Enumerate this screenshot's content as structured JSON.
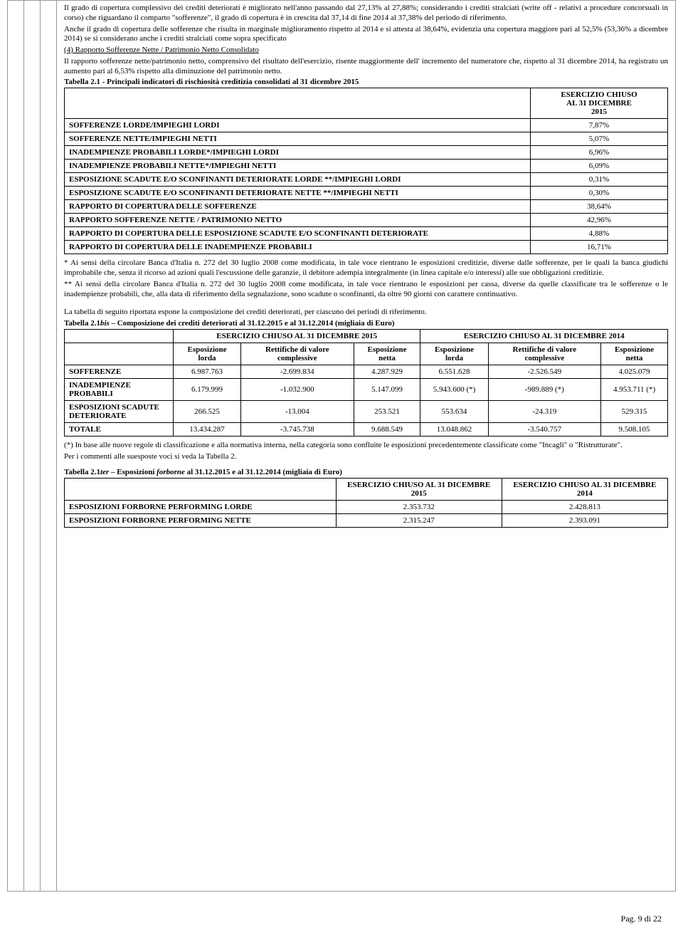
{
  "para1": "Il grado di copertura complessivo dei crediti deteriorati è migliorato nell'anno passando dal 27,13% al 27,88%; considerando i crediti stralciati (write off - relativi a procedure concorsuali in corso) che riguardano il comparto \"sofferenze\", il grado di copertura è in crescita dal 37,14 di fine 2014 al 37,38% del periodo di riferimento.",
  "para2": "Anche il grado di copertura delle sofferenze che risulta in marginale miglioramento rispetto al 2014 e si attesta al 38,64%, evidenzia una copertura maggiore pari al 52,5% (53,36% a dicembre 2014) se si considerano anche i crediti stralciati come sopra specificato",
  "para3_label": "(4) Rapporto Sofferenze Nette / Patrimonio Netto Consolidato",
  "para4": "Il rapporto sofferenze nette/patrimonio netto, comprensivo del risultato dell'esercizio, risente maggiormente dell' incremento del numeratore che, rispetto al 31 dicembre 2014, ha registrato un aumento pari al 6,53% rispetto alla diminuzione del patrimonio netto.",
  "tab1_title": "Tabella 2.1 - Principali indicatori di rischiosità creditizia consolidati al 31 dicembre 2015",
  "tab1_header": "ESERCIZIO CHIUSO\nAL 31 DICEMBRE\n2015",
  "tab1_rows": [
    {
      "label": "SOFFERENZE LORDE/IMPIEGHI LORDI",
      "val": "7,87%"
    },
    {
      "label": "SOFFERENZE NETTE/IMPIEGHI NETTI",
      "val": "5,07%"
    },
    {
      "label": "INADEMPIENZE PROBABILI LORDE*/IMPIEGHI LORDI",
      "val": "6,96%"
    },
    {
      "label": "INADEMPIENZE PROBABILI NETTE*/IMPIEGHI NETTI",
      "val": "6,09%"
    },
    {
      "label": "ESPOSIZIONE SCADUTE E/O SCONFINANTI DETERIORATE LORDE **/IMPIEGHI LORDI",
      "val": "0,31%"
    },
    {
      "label": "ESPOSIZIONE SCADUTE E/O SCONFINANTI DETERIORATE NETTE **/IMPIEGHI NETTI",
      "val": "0,30%"
    },
    {
      "label": "RAPPORTO DI COPERTURA DELLE SOFFERENZE",
      "val": "38,64%"
    },
    {
      "label": "RAPPORTO SOFFERENZE NETTE / PATRIMONIO NETTO",
      "val": "42,96%"
    },
    {
      "label": "RAPPORTO DI COPERTURA DELLE ESPOSIZIONE SCADUTE E/O SCONFINANTI DETERIORATE",
      "val": "4,88%"
    },
    {
      "label": "RAPPORTO DI COPERTURA DELLE INADEMPIENZE PROBABILI",
      "val": "16,71%"
    }
  ],
  "note1": "* Ai sensi della circolare Banca d'Italia n. 272 del 30 luglio 2008 come modificata, in tale voce rientrano le esposizioni creditizie, diverse dalle sofferenze, per le quali la banca giudichi improbabile che, senza il ricorso ad azioni quali l'escussione delle garanzie, il debitore adempia integralmente (in linea capitale e/o interessi) alle sue obbligazioni creditizie.",
  "note2": "** Ai sensi della circolare Banca d'Italia n. 272 del 30 luglio 2008 come modificata, in tale voce rientrano le esposizioni per cassa, diverse da quelle classificate tra le sofferenze o le inadempienze probabili, che, alla data di riferimento della segnalazione, sono scadute o sconfinanti, da oltre 90 giorni con carattere continuativo.",
  "para5": "La tabella di seguito riportata espone la composizione dei crediti deteriorati, per ciascuno dei periodi di riferimento.",
  "tab2_title_prefix": "Tabella 2.1",
  "tab2_title_italic": "bis",
  "tab2_title_suffix": " – Composizione dei crediti deteriorati al 31.12.2015 e al 31.12.2014 (migliaia di Euro)",
  "tab2_h1a": "ESERCIZIO CHIUSO AL 31 DICEMBRE 2015",
  "tab2_h1b": "ESERCIZIO CHIUSO AL 31 DICEMBRE 2014",
  "tab2_h2": [
    "Esposizione lorda",
    "Rettifiche di valore complessive",
    "Esposizione netta",
    "Esposizione lorda",
    "Rettifiche di valore complessive",
    "Esposizione netta"
  ],
  "tab2_rows": [
    {
      "label": "SOFFERENZE",
      "v": [
        "6.987.763",
        "-2.699.834",
        "4.287.929",
        "6.551.628",
        "-2.526.549",
        "4.025.079"
      ]
    },
    {
      "label": "INADEMPIENZE PROBABILI",
      "v": [
        "6.179.999",
        "-1.032.900",
        "5.147.099",
        "5.943.600 (*)",
        "-989.889 (*)",
        "4.953.711 (*)"
      ]
    },
    {
      "label": "ESPOSIZIONI SCADUTE DETERIORATE",
      "v": [
        "266.525",
        "-13.004",
        "253.521",
        "553.634",
        "-24.319",
        "529.315"
      ]
    },
    {
      "label": "TOTALE",
      "v": [
        "13.434.287",
        "-3.745.738",
        "9.688.549",
        "13.048.862",
        "-3.540.757",
        "9.508.105"
      ]
    }
  ],
  "note3": "(*) In base alle nuove regole di classificazione e alla normativa interna, nella categoria sono confluite le esposizioni precedentemente classificate come \"Incagli\" o \"Ristrutturate\".",
  "note4": "Per i commenti alle suesposte voci si veda la Tabella 2.",
  "tab3_title_prefix": "Tabella 2.1",
  "tab3_title_italic1": "ter",
  "tab3_title_mid": " – Esposizioni ",
  "tab3_title_italic2": "forborne",
  "tab3_title_suffix": " al 31.12.2015 e al 31.12.2014 (migliaia di Euro)",
  "tab3_h": [
    "ESERCIZIO CHIUSO AL 31 DICEMBRE 2015",
    "ESERCIZIO CHIUSO AL 31 DICEMBRE 2014"
  ],
  "tab3_rows": [
    {
      "label": "ESPOSIZIONI FORBORNE PERFORMING LORDE",
      "v": [
        "2.353.732",
        "2.428.813"
      ]
    },
    {
      "label": "ESPOSIZIONI FORBORNE PERFORMING NETTE",
      "v": [
        "2.315.247",
        "2.393.091"
      ]
    }
  ],
  "footer": "Pag. 9 di 22"
}
